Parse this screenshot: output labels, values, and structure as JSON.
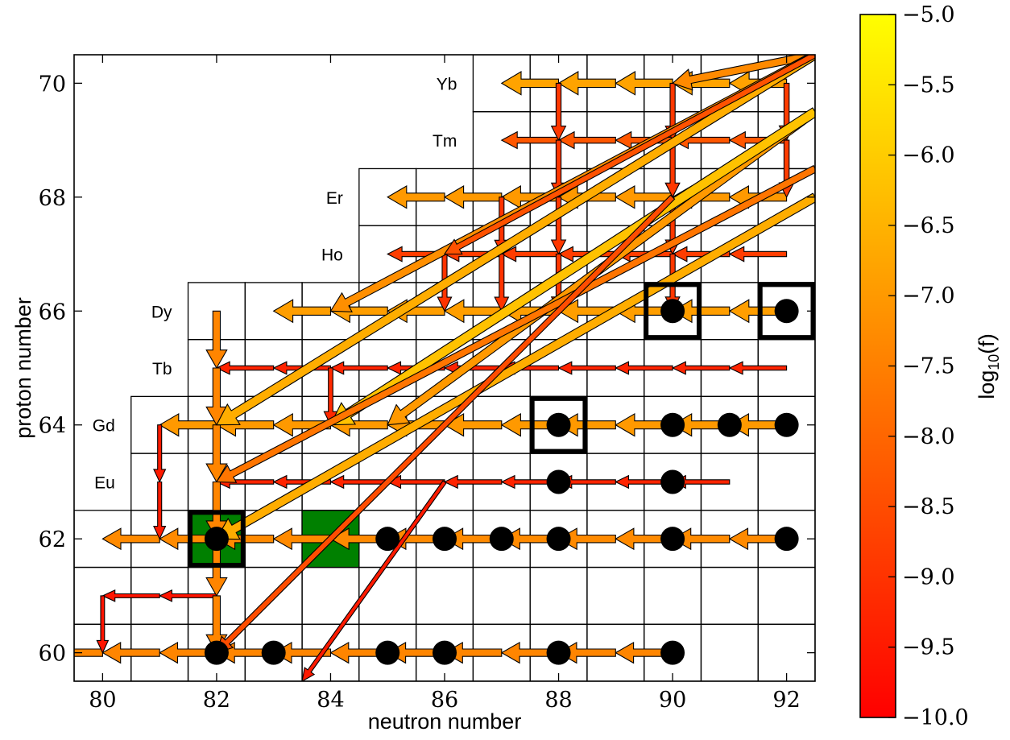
{
  "chart_data": {
    "type": "nuclide-flow-chart",
    "xlabel": "neutron number",
    "ylabel": "proton number",
    "xlim": [
      79.5,
      92.5
    ],
    "ylim": [
      59.5,
      70.5
    ],
    "x_ticks": [
      80,
      82,
      84,
      86,
      88,
      90,
      92
    ],
    "y_ticks": [
      60,
      62,
      64,
      66,
      68,
      70
    ],
    "element_labels": [
      {
        "label": "Yb",
        "z": 70
      },
      {
        "label": "Tm",
        "z": 69
      },
      {
        "label": "Er",
        "z": 68
      },
      {
        "label": "Ho",
        "z": 67
      },
      {
        "label": "Dy",
        "z": 66
      },
      {
        "label": "Tb",
        "z": 65
      },
      {
        "label": "Gd",
        "z": 64
      },
      {
        "label": "Eu",
        "z": 63
      }
    ],
    "isotope_rows": [
      {
        "z": 60,
        "n": [
          80,
          92
        ]
      },
      {
        "z": 61,
        "n": [
          80,
          92
        ]
      },
      {
        "z": 62,
        "n": [
          80,
          92
        ]
      },
      {
        "z": 63,
        "n": [
          81,
          92
        ]
      },
      {
        "z": 64,
        "n": [
          81,
          92
        ]
      },
      {
        "z": 65,
        "n": [
          82,
          92
        ]
      },
      {
        "z": 66,
        "n": [
          82,
          92
        ]
      },
      {
        "z": 67,
        "n": [
          85,
          92
        ]
      },
      {
        "z": 68,
        "n": [
          85,
          92
        ]
      },
      {
        "z": 69,
        "n": [
          87,
          92
        ]
      },
      {
        "z": 70,
        "n": [
          87,
          92
        ]
      }
    ],
    "stable_nuclei": [
      {
        "n": 82,
        "z": 60
      },
      {
        "n": 83,
        "z": 60
      },
      {
        "n": 85,
        "z": 60
      },
      {
        "n": 86,
        "z": 60
      },
      {
        "n": 88,
        "z": 60
      },
      {
        "n": 90,
        "z": 60
      },
      {
        "n": 82,
        "z": 62
      },
      {
        "n": 85,
        "z": 62
      },
      {
        "n": 86,
        "z": 62
      },
      {
        "n": 87,
        "z": 62
      },
      {
        "n": 88,
        "z": 62
      },
      {
        "n": 90,
        "z": 62
      },
      {
        "n": 92,
        "z": 62
      },
      {
        "n": 88,
        "z": 63
      },
      {
        "n": 90,
        "z": 63
      },
      {
        "n": 88,
        "z": 64
      },
      {
        "n": 90,
        "z": 64
      },
      {
        "n": 91,
        "z": 64
      },
      {
        "n": 92,
        "z": 64
      },
      {
        "n": 90,
        "z": 66
      },
      {
        "n": 92,
        "z": 66
      }
    ],
    "highlighted_boxes": [
      {
        "n": 82,
        "z": 62
      },
      {
        "n": 88,
        "z": 64
      },
      {
        "n": 90,
        "z": 66
      },
      {
        "n": 92,
        "z": 66
      }
    ],
    "green_cells": [
      {
        "n": 82,
        "z": 62
      },
      {
        "n": 84,
        "z": 62
      }
    ],
    "flows": {
      "horizontal": [
        {
          "z": 70,
          "n_from": 92.5,
          "n_to": 87,
          "logf": -6.8
        },
        {
          "z": 69,
          "n_from": 92.5,
          "n_to": 87,
          "logf": -8.3
        },
        {
          "z": 68,
          "n_from": 92.5,
          "n_to": 85,
          "logf": -7.0
        },
        {
          "z": 67,
          "n_from": 92.5,
          "n_to": 85,
          "logf": -8.8
        },
        {
          "z": 66,
          "n_from": 92.5,
          "n_to": 83,
          "logf": -6.9
        },
        {
          "z": 65,
          "n_from": 92.5,
          "n_to": 82,
          "logf": -9.3
        },
        {
          "z": 64,
          "n_from": 92.5,
          "n_to": 81,
          "logf": -7.0
        },
        {
          "z": 63,
          "n_from": 91,
          "n_to": 82,
          "logf": -9.3
        },
        {
          "z": 62,
          "n_from": 92,
          "n_to": 80,
          "logf": -7.3
        },
        {
          "z": 61,
          "n_from": 82,
          "n_to": 80,
          "logf": -9.6
        },
        {
          "z": 60,
          "n_from": 90,
          "n_to": 79.5,
          "logf": -7.4
        }
      ],
      "vertical": [
        {
          "n": 92,
          "z_from": 70.5,
          "z_to": 68,
          "logf": -8.8
        },
        {
          "n": 90,
          "z_from": 70,
          "z_to": 66,
          "logf": -8.9
        },
        {
          "n": 88,
          "z_from": 70,
          "z_to": 66,
          "logf": -8.9
        },
        {
          "n": 87,
          "z_from": 68,
          "z_to": 66,
          "logf": -9.0
        },
        {
          "n": 86,
          "z_from": 67,
          "z_to": 66,
          "logf": -9.0
        },
        {
          "n": 84,
          "z_from": 65,
          "z_to": 64,
          "logf": -9.2
        },
        {
          "n": 82,
          "z_from": 66,
          "z_to": 60,
          "logf": -7.4
        },
        {
          "n": 81,
          "z_from": 64,
          "z_to": 62,
          "logf": -9.5
        },
        {
          "n": 80,
          "z_from": 61,
          "z_to": 60,
          "logf": -9.6
        }
      ],
      "diagonal": [
        {
          "n_from": 92.5,
          "z_from": 70.5,
          "n_to": 90,
          "z_to": 70,
          "logf": -7.3
        },
        {
          "n_from": 92.5,
          "z_from": 70.5,
          "n_to": 84,
          "z_to": 66,
          "logf": -7.2
        },
        {
          "n_from": 92.5,
          "z_from": 70.5,
          "n_to": 82,
          "z_to": 64,
          "logf": -6.6
        },
        {
          "n_from": 92.5,
          "z_from": 69.5,
          "n_to": 85,
          "z_to": 64,
          "logf": -7.0
        },
        {
          "n_from": 92.5,
          "z_from": 69.5,
          "n_to": 84,
          "z_to": 64,
          "logf": -6.2
        },
        {
          "n_from": 92.5,
          "z_from": 68.5,
          "n_to": 82,
          "z_to": 63,
          "logf": -7.7
        },
        {
          "n_from": 92.5,
          "z_from": 68,
          "n_to": 82,
          "z_to": 62,
          "logf": -6.6
        },
        {
          "n_from": 90,
          "z_from": 68,
          "n_to": 82,
          "z_to": 60,
          "logf": -8.5
        },
        {
          "n_from": 86,
          "z_from": 63,
          "n_to": 83.5,
          "z_to": 59.5,
          "logf": -9.5
        },
        {
          "n_from": 92.5,
          "z_from": 70.5,
          "n_to": 86,
          "z_to": 67,
          "logf": -8.4
        }
      ]
    },
    "colorbar": {
      "label": "log10(f)",
      "colormap": "autumn",
      "color_min": "#ff0000",
      "color_max": "#ffff00",
      "range": [
        -10.0,
        -5.0
      ],
      "ticks": [
        "−5.0",
        "−5.5",
        "−6.0",
        "−6.5",
        "−7.0",
        "−7.5",
        "−8.0",
        "−8.5",
        "−9.0",
        "−9.5",
        "−10.0"
      ]
    }
  }
}
